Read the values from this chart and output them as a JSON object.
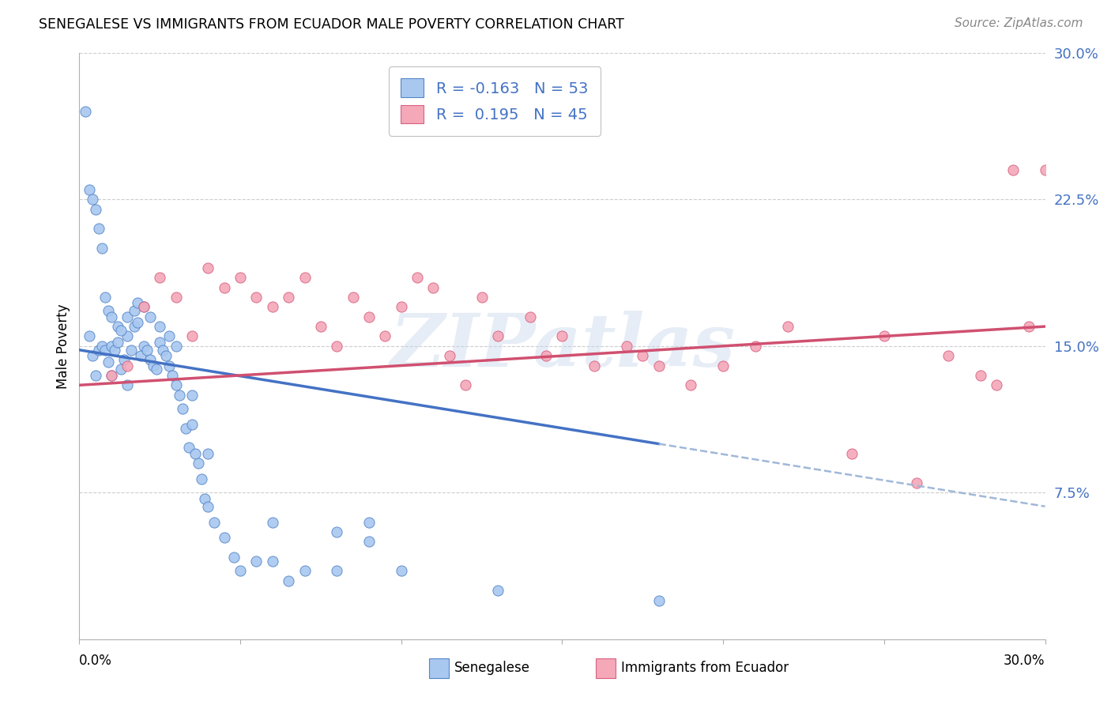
{
  "title": "SENEGALESE VS IMMIGRANTS FROM ECUADOR MALE POVERTY CORRELATION CHART",
  "source": "Source: ZipAtlas.com",
  "ylabel": "Male Poverty",
  "y_ticks": [
    0.0,
    0.075,
    0.15,
    0.225,
    0.3
  ],
  "y_tick_labels": [
    "",
    "7.5%",
    "15.0%",
    "22.5%",
    "30.0%"
  ],
  "xlim": [
    0.0,
    0.3
  ],
  "ylim": [
    0.0,
    0.3
  ],
  "blue_color": "#A8C8F0",
  "pink_color": "#F4A8B8",
  "blue_edge_color": "#5585C8",
  "pink_edge_color": "#D86080",
  "blue_line_color": "#4472C4",
  "pink_line_color": "#D05070",
  "dashed_line_color": "#A0B8D8",
  "legend_r_blue": "-0.163",
  "legend_n_blue": "53",
  "legend_r_pink": "0.195",
  "legend_n_pink": "45",
  "label_blue": "Senegalese",
  "label_pink": "Immigrants from Ecuador",
  "watermark": "ZIPatlas",
  "blue_scatter_x": [
    0.003,
    0.004,
    0.005,
    0.006,
    0.007,
    0.008,
    0.009,
    0.01,
    0.01,
    0.011,
    0.012,
    0.013,
    0.014,
    0.015,
    0.015,
    0.016,
    0.017,
    0.018,
    0.019,
    0.02,
    0.021,
    0.022,
    0.023,
    0.024,
    0.025,
    0.026,
    0.027,
    0.028,
    0.029,
    0.03,
    0.031,
    0.032,
    0.033,
    0.034,
    0.035,
    0.036,
    0.037,
    0.038,
    0.039,
    0.04,
    0.042,
    0.045,
    0.048,
    0.05,
    0.055,
    0.06,
    0.065,
    0.07,
    0.08,
    0.09,
    0.1,
    0.13,
    0.18
  ],
  "blue_scatter_y": [
    0.155,
    0.145,
    0.135,
    0.148,
    0.15,
    0.148,
    0.142,
    0.15,
    0.135,
    0.148,
    0.152,
    0.138,
    0.143,
    0.155,
    0.13,
    0.148,
    0.16,
    0.162,
    0.145,
    0.15,
    0.148,
    0.143,
    0.14,
    0.138,
    0.152,
    0.148,
    0.145,
    0.14,
    0.135,
    0.13,
    0.125,
    0.118,
    0.108,
    0.098,
    0.125,
    0.095,
    0.09,
    0.082,
    0.072,
    0.068,
    0.06,
    0.052,
    0.042,
    0.035,
    0.04,
    0.04,
    0.03,
    0.035,
    0.035,
    0.05,
    0.035,
    0.025,
    0.02
  ],
  "blue_scatter_extra_x": [
    0.002,
    0.003,
    0.004,
    0.005,
    0.006,
    0.007,
    0.008,
    0.009,
    0.01,
    0.012,
    0.013,
    0.015,
    0.017,
    0.018,
    0.02,
    0.022,
    0.025,
    0.028,
    0.03,
    0.035,
    0.04,
    0.06,
    0.08,
    0.09
  ],
  "blue_scatter_extra_y": [
    0.27,
    0.23,
    0.225,
    0.22,
    0.21,
    0.2,
    0.175,
    0.168,
    0.165,
    0.16,
    0.158,
    0.165,
    0.168,
    0.172,
    0.17,
    0.165,
    0.16,
    0.155,
    0.15,
    0.11,
    0.095,
    0.06,
    0.055,
    0.06
  ],
  "pink_scatter_x": [
    0.01,
    0.015,
    0.02,
    0.025,
    0.03,
    0.035,
    0.04,
    0.045,
    0.05,
    0.055,
    0.06,
    0.065,
    0.07,
    0.075,
    0.08,
    0.085,
    0.09,
    0.095,
    0.1,
    0.105,
    0.11,
    0.115,
    0.12,
    0.125,
    0.13,
    0.14,
    0.145,
    0.15,
    0.16,
    0.17,
    0.175,
    0.18,
    0.19,
    0.2,
    0.21,
    0.22,
    0.24,
    0.25,
    0.27,
    0.28,
    0.29,
    0.295,
    0.3,
    0.285,
    0.26
  ],
  "pink_scatter_y": [
    0.135,
    0.14,
    0.17,
    0.185,
    0.175,
    0.155,
    0.19,
    0.18,
    0.185,
    0.175,
    0.17,
    0.175,
    0.185,
    0.16,
    0.15,
    0.175,
    0.165,
    0.155,
    0.17,
    0.185,
    0.18,
    0.145,
    0.13,
    0.175,
    0.155,
    0.165,
    0.145,
    0.155,
    0.14,
    0.15,
    0.145,
    0.14,
    0.13,
    0.14,
    0.15,
    0.16,
    0.095,
    0.155,
    0.145,
    0.135,
    0.24,
    0.16,
    0.24,
    0.13,
    0.08
  ],
  "blue_line_x_start": 0.0,
  "blue_line_x_end": 0.18,
  "blue_line_y_start": 0.148,
  "blue_line_y_end": 0.1,
  "pink_line_x_start": 0.0,
  "pink_line_x_end": 0.3,
  "pink_line_y_start": 0.13,
  "pink_line_y_end": 0.16
}
